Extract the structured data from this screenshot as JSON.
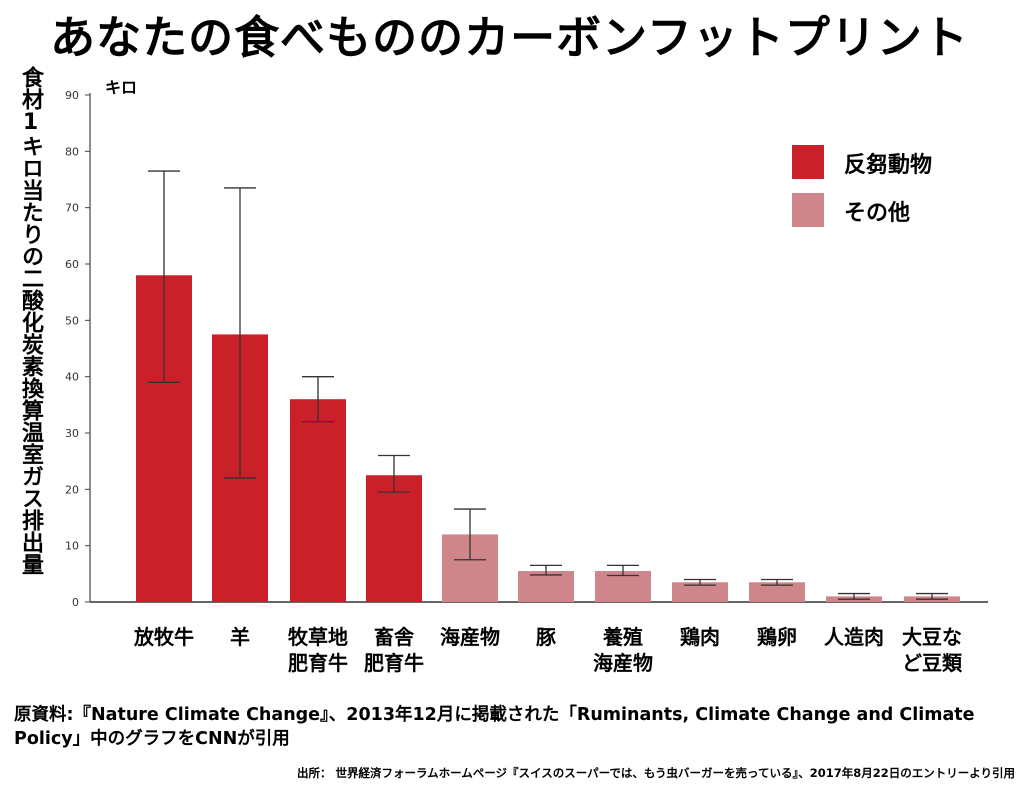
{
  "title": "あなたの食べもののカーボンフットプリント",
  "ylabel": "食材1キロ当たりの二酸化炭素換算温室ガス排出量",
  "unit_label": "キロ",
  "legend": [
    {
      "label": "反芻動物",
      "color": "#c9202a"
    },
    {
      "label": "その他",
      "color": "#cf868a"
    }
  ],
  "source_main": "原資料:『Nature Climate Change』、2013年12月に掲載された「Ruminants, Climate Change and Climate Policy」中のグラフをCNNが引用",
  "source_secondary": "出所： 世界経済フォーラムホームページ『スイスのスーパーでは、もう虫バーガーを売っている』、2017年8月22日のエントリーより引用",
  "chart_data": {
    "type": "bar",
    "ylim": [
      0,
      90
    ],
    "yticks": [
      0,
      10,
      20,
      30,
      40,
      50,
      60,
      70,
      80,
      90
    ],
    "grid": false,
    "legend_position": "top-right",
    "categories": [
      [
        "放牧牛"
      ],
      [
        "羊"
      ],
      [
        "牧草地",
        "肥育牛"
      ],
      [
        "畜舎",
        "肥育牛"
      ],
      [
        "海産物"
      ],
      [
        "豚"
      ],
      [
        "養殖",
        "海産物"
      ],
      [
        "鶏肉"
      ],
      [
        "鶏卵"
      ],
      [
        "人造肉"
      ],
      [
        "大豆な",
        "ど豆類"
      ]
    ],
    "values": [
      58,
      47.5,
      36,
      22.5,
      12,
      5.5,
      5.5,
      3.5,
      3.5,
      1,
      1
    ],
    "error_low": [
      39,
      22,
      32,
      19.5,
      7.5,
      4.8,
      4.7,
      3,
      3,
      0.5,
      0.5
    ],
    "error_high": [
      76.5,
      73.5,
      40,
      26,
      16.5,
      6.5,
      6.5,
      4,
      4,
      1.5,
      1.5
    ],
    "groups": [
      "反芻動物",
      "反芻動物",
      "反芻動物",
      "反芻動物",
      "その他",
      "その他",
      "その他",
      "その他",
      "その他",
      "その他",
      "その他"
    ]
  }
}
